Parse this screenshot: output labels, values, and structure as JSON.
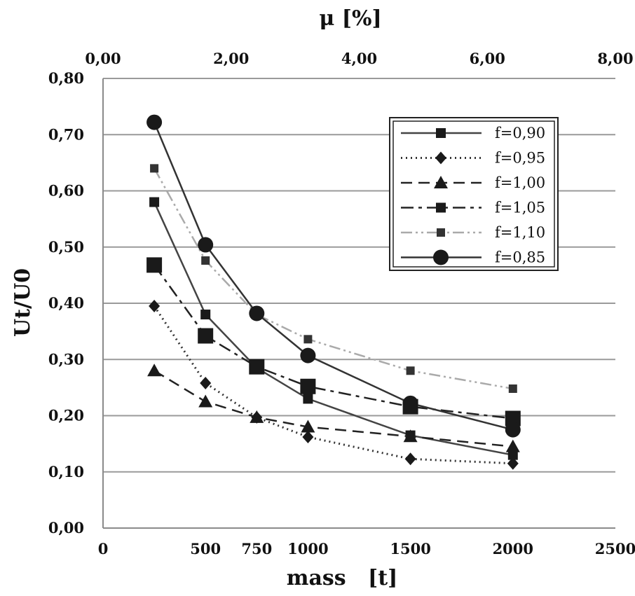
{
  "chart_data": {
    "type": "line",
    "xlabel": "mass   [t]",
    "ylabel": "Ut/U0",
    "x2label": "μ [%]",
    "xlim": [
      0,
      2500
    ],
    "ylim": [
      0,
      0.8
    ],
    "x2lim": [
      0,
      8
    ],
    "x_ticks": [
      "0",
      "500",
      "750",
      "1000",
      "1500",
      "2000",
      "2500"
    ],
    "x_tick_values": [
      0,
      500,
      750,
      1000,
      1500,
      2000,
      2500
    ],
    "y_ticks": [
      "0,00",
      "0,10",
      "0,20",
      "0,30",
      "0,40",
      "0,50",
      "0,60",
      "0,70",
      "0,80"
    ],
    "y_tick_values": [
      0,
      0.1,
      0.2,
      0.3,
      0.4,
      0.5,
      0.6,
      0.7,
      0.8
    ],
    "x2_ticks": [
      "0,00",
      "2,00",
      "4,00",
      "6,00",
      "8,00"
    ],
    "x2_tick_values": [
      0,
      2,
      4,
      6,
      8
    ],
    "grid": "horizontal",
    "legend_position": "top-right",
    "x": [
      250,
      500,
      750,
      1000,
      1500,
      2000
    ],
    "series": [
      {
        "name": "f=0,90",
        "values": [
          0.58,
          0.38,
          0.285,
          0.23,
          0.165,
          0.13
        ],
        "dash": "solid",
        "marker": "square"
      },
      {
        "name": "f=0,95",
        "values": [
          0.395,
          0.258,
          0.197,
          0.162,
          0.123,
          0.115
        ],
        "dash": "dotted",
        "marker": "diamond"
      },
      {
        "name": "f=1,00",
        "values": [
          0.28,
          0.225,
          0.197,
          0.18,
          0.163,
          0.145
        ],
        "dash": "dashed",
        "marker": "triangle"
      },
      {
        "name": "f=1,05",
        "values": [
          0.468,
          0.342,
          0.287,
          0.252,
          0.216,
          0.195
        ],
        "dash": "dashdot",
        "marker": "bigsquare"
      },
      {
        "name": "f=1,10",
        "values": [
          0.64,
          0.476,
          0.38,
          0.336,
          0.28,
          0.248
        ],
        "dash": "dashdotdot",
        "marker": "smallsquare"
      },
      {
        "name": "f=0,85",
        "values": [
          0.722,
          0.504,
          0.382,
          0.307,
          0.222,
          0.175
        ],
        "dash": "solid",
        "marker": "circle"
      }
    ]
  }
}
